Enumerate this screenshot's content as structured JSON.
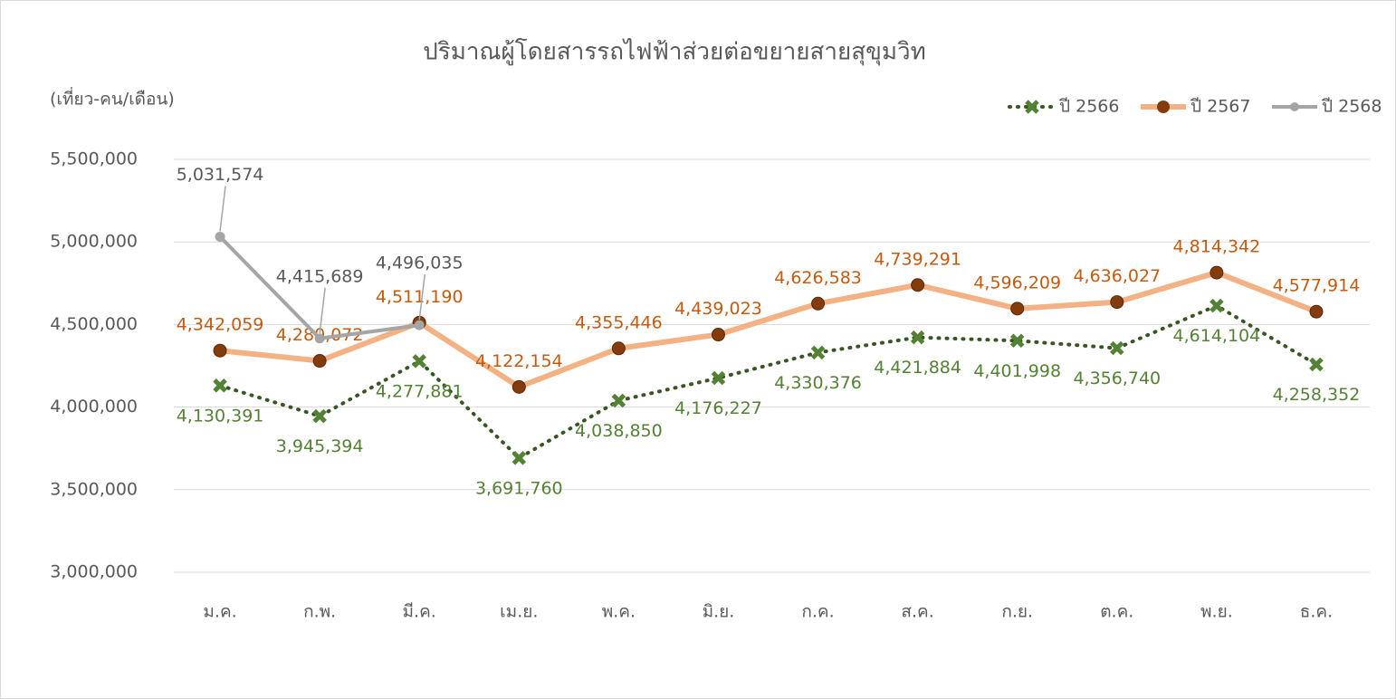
{
  "chart_data": {
    "type": "line",
    "title": "ปริมาณผู้โดยสารรถไฟฟ้าส่วยต่อขยายสายสุขุมวิท",
    "y_label": "(เที่ยว-คน/เดือน)",
    "categories": [
      "ม.ค.",
      "ก.พ.",
      "มี.ค.",
      "เม.ย.",
      "พ.ค.",
      "มิ.ย.",
      "ก.ค.",
      "ส.ค.",
      "ก.ย.",
      "ต.ค.",
      "พ.ย.",
      "ธ.ค."
    ],
    "series": [
      {
        "name": "ปี 2566",
        "color": "#375623",
        "marker_color": "#548235",
        "label_color": "#548235",
        "style": "dotted",
        "values": [
          4130391,
          3945394,
          4277881,
          3691760,
          4038850,
          4176227,
          4330376,
          4421884,
          4401998,
          4356740,
          4614104,
          4258352
        ],
        "value_labels": [
          "4,130,391",
          "3,945,394",
          "4,277,881",
          "3,691,760",
          "4,038,850",
          "4,176,227",
          "4,330,376",
          "4,421,884",
          "4,401,998",
          "4,356,740",
          "4,614,104",
          "4,258,352"
        ]
      },
      {
        "name": "ปี 2567",
        "color": "#F4B183",
        "marker_color": "#843C0C",
        "label_color": "#C55A11",
        "style": "solid",
        "values": [
          4342059,
          4280072,
          4511190,
          4122154,
          4355446,
          4439023,
          4626583,
          4739291,
          4596209,
          4636027,
          4814342,
          4577914
        ],
        "value_labels": [
          "4,342,059",
          "4,280,072",
          "4,511,190",
          "4,122,154",
          "4,355,446",
          "4,439,023",
          "4,626,583",
          "4,739,291",
          "4,596,209",
          "4,636,027",
          "4,814,342",
          "4,577,914"
        ]
      },
      {
        "name": "ปี 2568",
        "color": "#A5A5A5",
        "marker_color": "#A5A5A5",
        "label_color": "#595959",
        "style": "solid",
        "values": [
          5031574,
          4415689,
          4496035,
          null,
          null,
          null,
          null,
          null,
          null,
          null,
          null,
          null
        ],
        "value_labels": [
          "5,031,574",
          "4,415,689",
          "4,496,035",
          null,
          null,
          null,
          null,
          null,
          null,
          null,
          null,
          null
        ]
      }
    ],
    "ylim": [
      3000000,
      5500000
    ],
    "yticks": [
      {
        "value": 3000000,
        "label": "3,000,000"
      },
      {
        "value": 3500000,
        "label": "3,500,000"
      },
      {
        "value": 4000000,
        "label": "4,000,000"
      },
      {
        "value": 4500000,
        "label": "4,500,000"
      },
      {
        "value": 5000000,
        "label": "5,000,000"
      },
      {
        "value": 5500000,
        "label": "5,500,000"
      }
    ],
    "grid": true,
    "legend": "top-right"
  }
}
